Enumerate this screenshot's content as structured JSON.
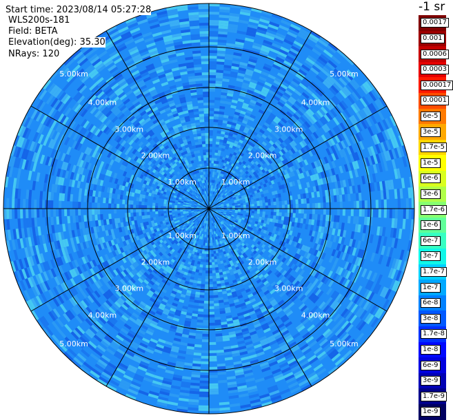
{
  "header": {
    "start_time": "Start time: 2023/08/14 05:27:28",
    "device": "WLS200s-181",
    "field": "Field: BETA",
    "elevation": "Elevation(deg): 35.30",
    "nrays": "NRays: 120"
  },
  "colorbar": {
    "unit_title": "-1 sr",
    "levels": [
      {
        "label": "0.0017",
        "color": "#7f0000"
      },
      {
        "label": "0.001",
        "color": "#9c0000"
      },
      {
        "label": "0.0006",
        "color": "#c40000"
      },
      {
        "label": "0.0003",
        "color": "#e60000"
      },
      {
        "label": "0.00017",
        "color": "#ff1a00"
      },
      {
        "label": "0.0001",
        "color": "#ff4d00"
      },
      {
        "label": "6e-5",
        "color": "#ff7a00"
      },
      {
        "label": "3e-5",
        "color": "#ffa800"
      },
      {
        "label": "1.7e-5",
        "color": "#ffd500"
      },
      {
        "label": "1e-5",
        "color": "#ffff00"
      },
      {
        "label": "6e-6",
        "color": "#d9ff1f"
      },
      {
        "label": "3e-6",
        "color": "#b0ff47"
      },
      {
        "label": "1.7e-6",
        "color": "#88ff70"
      },
      {
        "label": "1e-6",
        "color": "#5fff99"
      },
      {
        "label": "6e-7",
        "color": "#36ffc2"
      },
      {
        "label": "3e-7",
        "color": "#10f7e8"
      },
      {
        "label": "1.7e-7",
        "color": "#00d0ff"
      },
      {
        "label": "1e-7",
        "color": "#00a8ff"
      },
      {
        "label": "6e-8",
        "color": "#0080ff"
      },
      {
        "label": "3e-8",
        "color": "#0058ff"
      },
      {
        "label": "1.7e-8",
        "color": "#0030ff"
      },
      {
        "label": "1e-8",
        "color": "#0008ff"
      },
      {
        "label": "6e-9",
        "color": "#0000de"
      },
      {
        "label": "3e-9",
        "color": "#0000b4"
      },
      {
        "label": "1.7e-9",
        "color": "#00008a"
      },
      {
        "label": "1e-9",
        "color": "#000060"
      }
    ]
  },
  "plot": {
    "ring_labels": [
      "1.00km",
      "2.00km",
      "3.00km",
      "4.00km",
      "5.00km"
    ],
    "azimuth_lines": 12,
    "background_color": "#1f8cf7",
    "field_colors": [
      "#1a78f0",
      "#2b9af4",
      "#3aaef5",
      "#1565e8",
      "#45c8f2"
    ]
  }
}
